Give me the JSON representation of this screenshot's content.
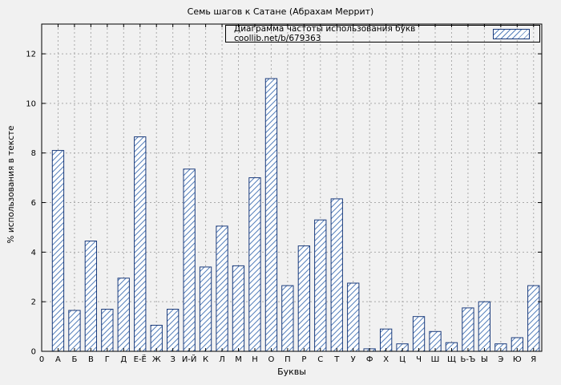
{
  "chart_data": {
    "type": "bar",
    "title": "Семь шагов к Сатане (Абрахам Меррит)",
    "legend": "Диаграмма частоты использования букв coollib.net/b/679363",
    "xlabel": "Буквы",
    "ylabel": "% использования в тексте",
    "origin_tick": "0",
    "categories": [
      "А",
      "Б",
      "В",
      "Г",
      "Д",
      "Е-Ё",
      "Ж",
      "З",
      "И-Й",
      "К",
      "Л",
      "М",
      "Н",
      "О",
      "П",
      "Р",
      "С",
      "Т",
      "У",
      "Ф",
      "Х",
      "Ц",
      "Ч",
      "Ш",
      "Щ",
      "Ь-Ъ",
      "Ы",
      "Э",
      "Ю",
      "Я"
    ],
    "values": [
      8.1,
      1.65,
      4.45,
      1.7,
      2.95,
      8.65,
      1.05,
      1.7,
      7.35,
      3.4,
      5.05,
      3.45,
      7.0,
      11.0,
      2.65,
      4.25,
      5.3,
      6.15,
      2.75,
      0.1,
      0.9,
      0.3,
      1.4,
      0.8,
      0.35,
      1.75,
      2.0,
      0.3,
      0.55,
      2.65
    ],
    "yticks": [
      0,
      2,
      4,
      6,
      8,
      10,
      12
    ],
    "ylim": [
      0,
      13.2
    ],
    "grid": true,
    "legend_position": "top-right-inside",
    "colors": {
      "bar_border": "#1a3a7a",
      "bar_hatch": "#5580bb",
      "grid": "#aaaaaa",
      "axis": "#000000",
      "background": "#f1f1f1"
    }
  }
}
